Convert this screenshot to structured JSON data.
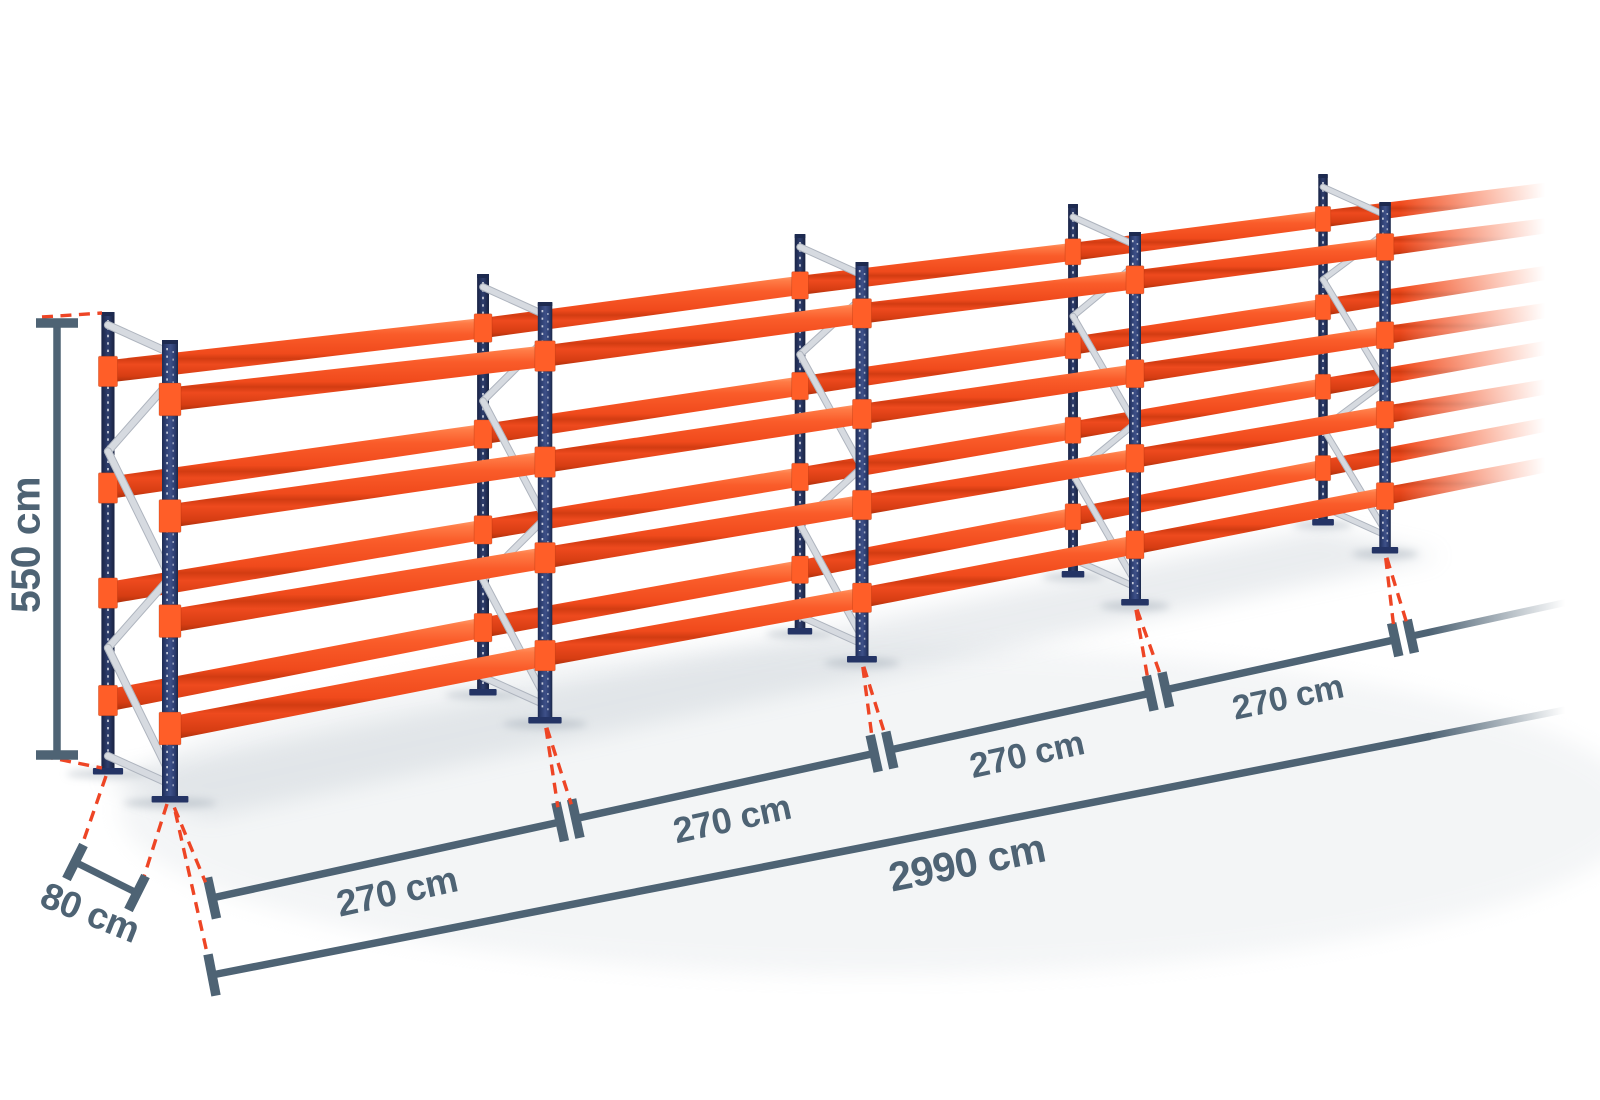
{
  "page": {
    "title": "Pallet racking row dimension diagram",
    "background": "#ffffff"
  },
  "racking": {
    "frames_visible": 5,
    "beam_levels": 4,
    "bays_labeled": 4,
    "upright_color": "#2e4074",
    "beam_color": "#f65022",
    "connector_color": "#ff5e28",
    "brace_color": "#d3d7dd"
  },
  "annotation": {
    "dimension_line_color": "#4e6374",
    "leader_dash_color": "#ee4525"
  },
  "dimensions": {
    "height": {
      "label": "550 cm",
      "value": 550,
      "unit": "cm"
    },
    "depth": {
      "label": "80 cm",
      "value": 80,
      "unit": "cm"
    },
    "bays": [
      {
        "label": "270 cm",
        "value": 270
      },
      {
        "label": "270 cm",
        "value": 270
      },
      {
        "label": "270 cm",
        "value": 270
      },
      {
        "label": "270 cm",
        "value": 270
      }
    ],
    "total": {
      "label": "2990 cm",
      "value": 2990,
      "unit": "cm"
    }
  }
}
